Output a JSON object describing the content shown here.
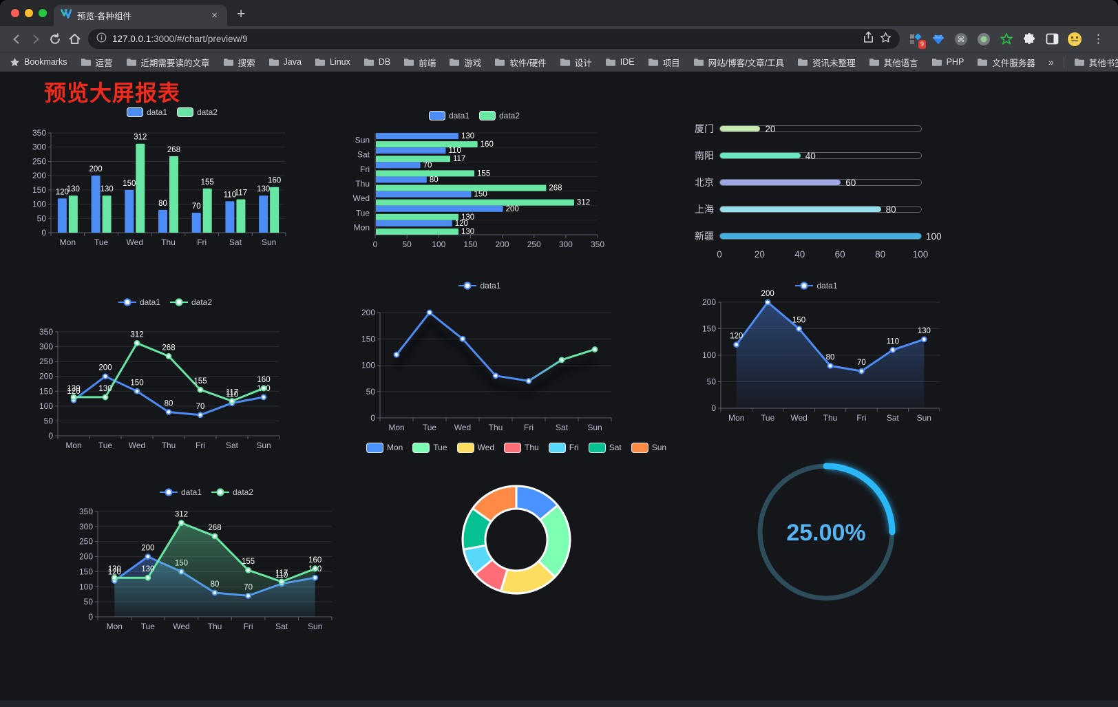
{
  "browser": {
    "tab": {
      "title": "预览-各种组件",
      "close_glyph": "×",
      "new_tab_glyph": "+"
    },
    "url": {
      "host": "127.0.0.1",
      "rest": ":3000/#/chart/preview/9"
    },
    "extension_badge": "9",
    "menu_glyph": "⋮",
    "bookmarks_bar": {
      "root_label": "Bookmarks",
      "items": [
        "运营",
        "近期需要读的文章",
        "搜索",
        "Java",
        "Linux",
        "DB",
        "前端",
        "游戏",
        "软件/硬件",
        "设计",
        "IDE",
        "项目",
        "网站/博客/文章/工具",
        "资讯未整理",
        "其他语言",
        "PHP",
        "文件服务器"
      ],
      "overflow_glyph": "»",
      "other_bookmarks_label": "其他书签"
    },
    "traffic_lights": [
      "#ff5f57",
      "#febc2e",
      "#28c840"
    ]
  },
  "page": {
    "title": "预览大屏报表",
    "title_color": "#ee2b1c",
    "background": "#15161a"
  },
  "palette": {
    "blue": "#4e8cf5",
    "green": "#68e6a4",
    "axis_text": "#b9bacb",
    "axis_line": "#5c5f69",
    "grid_line": "rgba(255,255,255,0.10)",
    "value_label": "#ffffff"
  },
  "chart_data": [
    {
      "id": "bar-vertical",
      "type": "bar",
      "categories": [
        "Mon",
        "Tue",
        "Wed",
        "Thu",
        "Fri",
        "Sat",
        "Sun"
      ],
      "series": [
        {
          "name": "data1",
          "color": "#4e8cf5",
          "values": [
            120,
            200,
            150,
            80,
            70,
            110,
            130
          ]
        },
        {
          "name": "data2",
          "color": "#68e6a4",
          "values": [
            130,
            130,
            312,
            268,
            155,
            117,
            160
          ]
        }
      ],
      "ylim": [
        0,
        350
      ],
      "ystep": 50,
      "legend_position": "top",
      "value_labels": true,
      "grid": true
    },
    {
      "id": "bar-horizontal",
      "type": "bar",
      "orientation": "horizontal",
      "categories_top_to_bottom": [
        "Sun",
        "Sat",
        "Fri",
        "Thu",
        "Wed",
        "Tue",
        "Mon"
      ],
      "series": [
        {
          "name": "data1",
          "color": "#4e8cf5",
          "values_top_to_bottom": [
            130,
            110,
            70,
            80,
            150,
            200,
            120
          ]
        },
        {
          "name": "data2",
          "color": "#68e6a4",
          "values_top_to_bottom": [
            160,
            117,
            155,
            268,
            312,
            130,
            130
          ]
        }
      ],
      "xlim": [
        0,
        350
      ],
      "xstep": 50,
      "legend_position": "top",
      "value_labels": true
    },
    {
      "id": "progress-bars",
      "type": "bar",
      "subtype": "progress",
      "items": [
        {
          "label": "厦门",
          "value": 20,
          "color": "#c4ebad"
        },
        {
          "label": "南阳",
          "value": 40,
          "color": "#6be6c1"
        },
        {
          "label": "北京",
          "value": 60,
          "color": "#a0a7e6"
        },
        {
          "label": "上海",
          "value": 80,
          "color": "#96dee8"
        },
        {
          "label": "新疆",
          "value": 100,
          "color": "#3fb1e3"
        }
      ],
      "xlim": [
        0,
        100
      ],
      "xticks": [
        0,
        20,
        40,
        60,
        80,
        100
      ]
    },
    {
      "id": "line-two-series",
      "type": "line",
      "categories": [
        "Mon",
        "Tue",
        "Wed",
        "Thu",
        "Fri",
        "Sat",
        "Sun"
      ],
      "series": [
        {
          "name": "data1",
          "color": "#4e8cf5",
          "values": [
            120,
            200,
            150,
            80,
            70,
            110,
            130
          ]
        },
        {
          "name": "data2",
          "color": "#68e6a4",
          "values": [
            130,
            130,
            312,
            268,
            155,
            117,
            160
          ]
        }
      ],
      "ylim": [
        0,
        350
      ],
      "ystep": 50,
      "legend_position": "top",
      "value_labels": true
    },
    {
      "id": "line-gradient",
      "type": "line",
      "categories": [
        "Mon",
        "Tue",
        "Wed",
        "Thu",
        "Fri",
        "Sat",
        "Sun"
      ],
      "series": [
        {
          "name": "data1",
          "color_start": "#4e8cf5",
          "color_end": "#68e6a4",
          "values": [
            120,
            200,
            150,
            80,
            70,
            110,
            130
          ]
        }
      ],
      "ylim": [
        0,
        200
      ],
      "ystep": 50,
      "legend_position": "top",
      "value_labels": false,
      "line_shadow": true
    },
    {
      "id": "area-single",
      "type": "area",
      "categories": [
        "Mon",
        "Tue",
        "Wed",
        "Thu",
        "Fri",
        "Sat",
        "Sun"
      ],
      "series": [
        {
          "name": "data1",
          "color": "#4e8cf5",
          "values": [
            120,
            200,
            150,
            80,
            70,
            110,
            130
          ]
        }
      ],
      "ylim": [
        0,
        200
      ],
      "ystep": 50,
      "legend_position": "top",
      "value_labels": true
    },
    {
      "id": "area-two-series",
      "type": "area",
      "categories": [
        "Mon",
        "Tue",
        "Wed",
        "Thu",
        "Fri",
        "Sat",
        "Sun"
      ],
      "series": [
        {
          "name": "data1",
          "color": "#4e8cf5",
          "values": [
            120,
            200,
            150,
            80,
            70,
            110,
            130
          ]
        },
        {
          "name": "data2",
          "color": "#68e6a4",
          "values": [
            130,
            130,
            312,
            268,
            155,
            117,
            160
          ]
        }
      ],
      "ylim": [
        0,
        350
      ],
      "ystep": 50,
      "legend_position": "top",
      "value_labels": true
    },
    {
      "id": "donut",
      "type": "pie",
      "categories": [
        "Mon",
        "Tue",
        "Wed",
        "Thu",
        "Fri",
        "Sat",
        "Sun"
      ],
      "values": [
        120,
        200,
        150,
        80,
        70,
        110,
        130
      ],
      "colors": [
        "#4992ff",
        "#7cffb2",
        "#fddd60",
        "#ff6e76",
        "#58d9f9",
        "#05c091",
        "#ff8a45"
      ],
      "inner_radius_ratio": 0.58,
      "segment_border_color": "#ffffff",
      "legend_position": "top"
    },
    {
      "id": "gauge",
      "type": "gauge",
      "value_percent": 25,
      "label": "25.00%",
      "arc_color": "#2ab8f7",
      "track_color": "#2d4d5a",
      "text_color": "#55b4f2"
    }
  ]
}
